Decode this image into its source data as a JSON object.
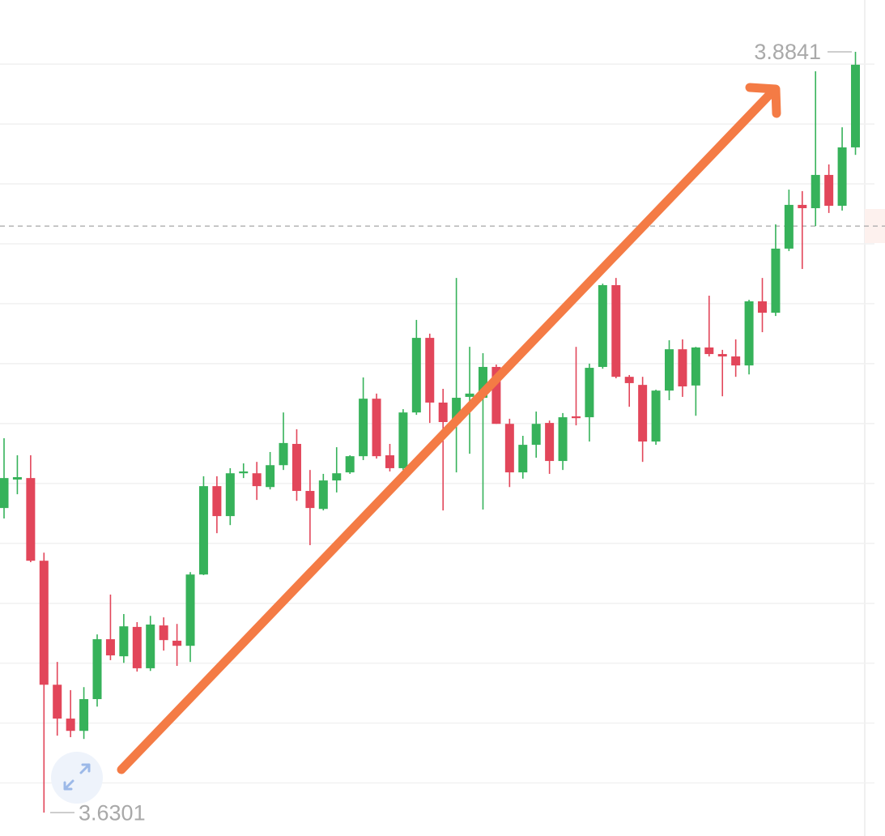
{
  "chart_data": {
    "type": "candlestick",
    "up_color": "#36b25a",
    "down_color": "#e2465a",
    "grid": true,
    "ylim": [
      3.6223,
      3.9014
    ],
    "yticks": [
      3.64,
      3.66,
      3.68,
      3.7,
      3.72,
      3.74,
      3.76,
      3.78,
      3.8,
      3.82,
      3.84,
      3.86,
      3.88
    ],
    "max_label": 3.8841,
    "min_label": 3.6301,
    "price_line": 3.8259,
    "open": [
      3.7318,
      3.7413,
      3.7418,
      3.7142,
      3.6728,
      3.6615,
      3.6574,
      3.668,
      3.688,
      3.6823,
      3.6921,
      3.6783,
      3.6926,
      3.6875,
      3.6858,
      3.7096,
      3.7391,
      3.7291,
      3.7434,
      3.7434,
      3.7388,
      3.7461,
      3.7532,
      3.7375,
      3.7315,
      3.741,
      3.7437,
      3.7491,
      3.7683,
      3.7494,
      3.7451,
      3.7637,
      3.7886,
      3.767,
      3.7602,
      3.7689,
      3.7686,
      3.7789,
      3.7599,
      3.7437,
      3.7529,
      3.7602,
      3.7475,
      3.7624,
      3.7621,
      3.7789,
      3.8062,
      3.7756,
      3.7729,
      3.754,
      3.771,
      3.7848,
      3.7727,
      3.7854,
      3.7832,
      3.7824,
      3.7794,
      3.8008,
      3.797,
      3.8184,
      3.833,
      3.8319,
      3.843,
      3.8327,
      3.8522
    ],
    "high": [
      3.7551,
      3.7494,
      3.7494,
      3.7169,
      3.6804,
      3.671,
      3.672,
      3.6896,
      3.7029,
      3.6964,
      3.6937,
      3.6958,
      3.6953,
      3.6931,
      3.7104,
      3.7424,
      3.7424,
      3.7451,
      3.7467,
      3.7472,
      3.7505,
      3.7637,
      3.7581,
      3.7445,
      3.7432,
      3.7521,
      3.7494,
      3.7754,
      3.77,
      3.7532,
      3.7648,
      3.7946,
      3.79,
      3.7716,
      3.8086,
      3.7856,
      3.7835,
      3.7797,
      3.7616,
      3.7559,
      3.764,
      3.761,
      3.7635,
      3.7856,
      3.78,
      3.8067,
      3.8086,
      3.7762,
      3.7756,
      3.7713,
      3.7878,
      3.7881,
      3.7856,
      3.8027,
      3.7846,
      3.7881,
      3.8013,
      3.8086,
      3.8265,
      3.8381,
      3.8376,
      3.8776,
      3.8465,
      3.8589,
      3.8841
    ],
    "low": [
      3.7283,
      3.7364,
      3.7137,
      3.6301,
      3.6558,
      3.6553,
      3.6547,
      3.6655,
      3.681,
      3.6801,
      3.6772,
      3.6774,
      3.6842,
      3.6791,
      3.6804,
      3.7094,
      3.7234,
      3.7261,
      3.7418,
      3.7345,
      3.738,
      3.7445,
      3.7342,
      3.7194,
      3.731,
      3.737,
      3.7432,
      3.7478,
      3.7483,
      3.744,
      3.7445,
      3.7629,
      3.7602,
      3.731,
      3.7437,
      3.7499,
      3.7313,
      3.7599,
      3.7388,
      3.7416,
      3.7486,
      3.7432,
      3.7445,
      3.7594,
      3.754,
      3.7783,
      3.7751,
      3.7656,
      3.7472,
      3.7529,
      3.7678,
      3.7689,
      3.7626,
      3.7824,
      3.7691,
      3.7756,
      3.7764,
      3.7905,
      3.7959,
      3.8176,
      3.8116,
      3.8259,
      3.8303,
      3.8311,
      3.8497
    ],
    "close": [
      3.7418,
      3.7421,
      3.7142,
      3.6728,
      3.6615,
      3.6574,
      3.668,
      3.688,
      3.6826,
      3.6923,
      3.6783,
      3.6929,
      3.6877,
      3.6858,
      3.7096,
      3.7391,
      3.7291,
      3.7434,
      3.744,
      3.7391,
      3.7461,
      3.7535,
      3.7375,
      3.7318,
      3.741,
      3.7434,
      3.7491,
      3.7683,
      3.7491,
      3.7451,
      3.7637,
      3.7886,
      3.767,
      3.7605,
      3.7686,
      3.77,
      3.7789,
      3.7599,
      3.7437,
      3.7529,
      3.7599,
      3.7475,
      3.7621,
      3.7618,
      3.7786,
      3.8062,
      3.7756,
      3.7735,
      3.754,
      3.771,
      3.7848,
      3.7724,
      3.7854,
      3.7832,
      3.7824,
      3.7794,
      3.8008,
      3.797,
      3.8184,
      3.833,
      3.8319,
      3.843,
      3.8327,
      3.8522,
      3.8798
    ]
  }
}
